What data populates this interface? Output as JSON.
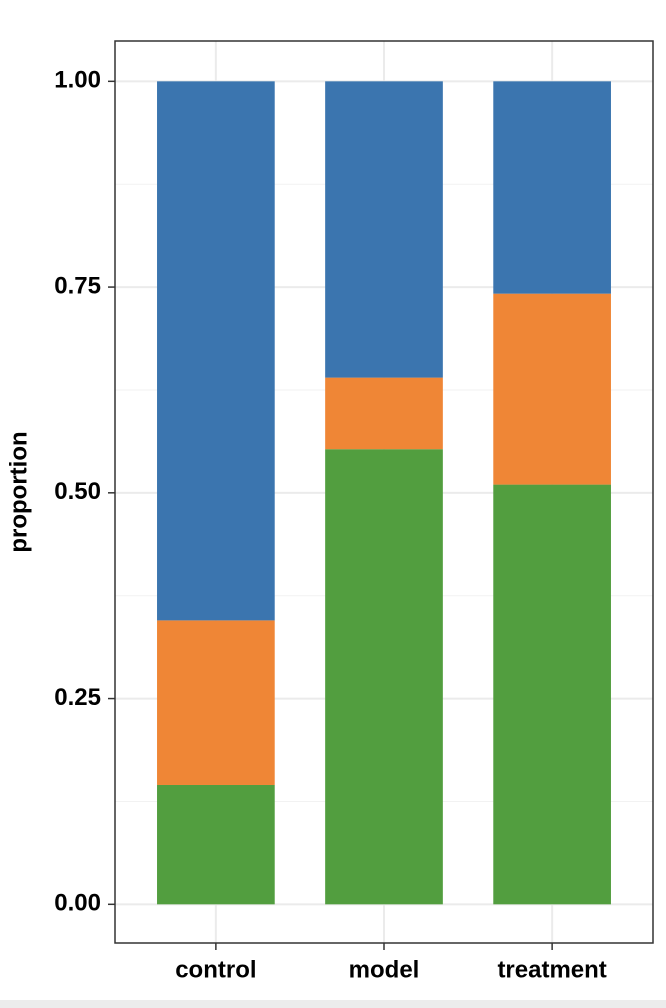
{
  "chart_data": {
    "type": "stacked_bar",
    "y_label": "proportion",
    "categories": [
      "control",
      "model",
      "treatment"
    ],
    "series": [
      {
        "color": "#529e3f",
        "values": [
          0.145,
          0.553,
          0.51
        ]
      },
      {
        "color": "#ef8636",
        "values": [
          0.2,
          0.087,
          0.232
        ]
      },
      {
        "color": "#3b75af",
        "values": [
          0.655,
          0.36,
          0.258
        ]
      }
    ],
    "ylim": [
      -0.047,
      1.049
    ],
    "yticks": [
      {
        "value": 0,
        "label": "0.00"
      },
      {
        "value": 0.25,
        "label": "0.25"
      },
      {
        "value": 0.5,
        "label": "0.50"
      },
      {
        "value": 0.75,
        "label": "0.75"
      },
      {
        "value": 1,
        "label": "1.00"
      }
    ],
    "grid": true,
    "minor_grid": true
  }
}
